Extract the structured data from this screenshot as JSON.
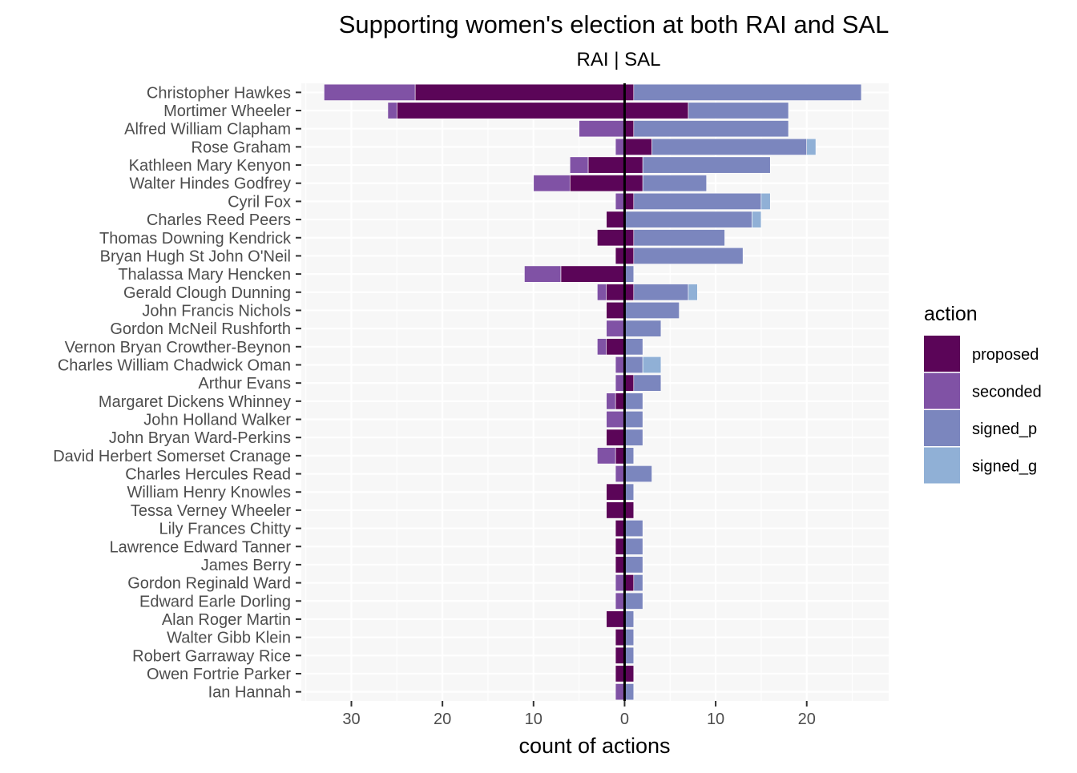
{
  "chart_data": {
    "type": "bar",
    "orientation": "horizontal",
    "stacked": true,
    "diverging": true,
    "title": "Supporting women's election at both RAI and SAL",
    "subtitle": "RAI | SAL",
    "xlabel": "count of actions",
    "ylabel": "",
    "xlim": [
      -35.5,
      29
    ],
    "x_ticks": [
      -30,
      -20,
      -10,
      0,
      10,
      20
    ],
    "x_tick_labels": [
      "30",
      "20",
      "10",
      "0",
      "10",
      "20"
    ],
    "grid": true,
    "legend": {
      "title": "action",
      "position": "right"
    },
    "series": [
      {
        "name": "proposed",
        "color": "#5b0558"
      },
      {
        "name": "seconded",
        "color": "#8052a5"
      },
      {
        "name": "signed_p",
        "color": "#7b86be"
      },
      {
        "name": "signed_g",
        "color": "#90b0d6"
      }
    ],
    "categories": [
      "Christopher Hawkes",
      "Mortimer Wheeler",
      "Alfred William Clapham",
      "Rose Graham",
      "Kathleen Mary Kenyon",
      "Walter Hindes Godfrey",
      "Cyril Fox",
      "Charles Reed Peers",
      "Thomas Downing Kendrick",
      "Bryan Hugh St John O'Neil",
      "Thalassa Mary Hencken",
      "Gerald Clough Dunning",
      "John Francis Nichols",
      "Gordon McNeil Rushforth",
      "Vernon Bryan Crowther-Beynon",
      "Charles William Chadwick Oman",
      "Arthur Evans",
      "Margaret Dickens Whinney",
      "John Holland Walker",
      "John Bryan Ward-Perkins",
      "David Herbert Somerset Cranage",
      "Charles Hercules Read",
      "William Henry Knowles",
      "Tessa Verney Wheeler",
      "Lily Frances Chitty",
      "Lawrence Edward Tanner",
      "James Berry",
      "Gordon Reginald Ward",
      "Edward Earle Dorling",
      "Alan Roger Martin",
      "Walter Gibb Klein",
      "Robert Garraway Rice",
      "Owen Fortrie Parker",
      "Ian Hannah"
    ],
    "rai": {
      "proposed": [
        23,
        25,
        0,
        0,
        4,
        6,
        0,
        2,
        3,
        1,
        7,
        2,
        2,
        0,
        2,
        0,
        0,
        1,
        0,
        2,
        1,
        0,
        2,
        2,
        1,
        1,
        1,
        0,
        0,
        2,
        1,
        1,
        1,
        0
      ],
      "seconded": [
        10,
        1,
        5,
        1,
        2,
        4,
        1,
        0,
        0,
        0,
        4,
        1,
        0,
        2,
        1,
        1,
        1,
        1,
        2,
        0,
        2,
        1,
        0,
        0,
        0,
        0,
        0,
        1,
        1,
        0,
        0,
        0,
        0,
        1
      ]
    },
    "sal": {
      "proposed": [
        1,
        7,
        1,
        3,
        2,
        2,
        1,
        0,
        1,
        1,
        0,
        1,
        0,
        0,
        0,
        0,
        1,
        0,
        0,
        0,
        0,
        0,
        0,
        1,
        0,
        0,
        0,
        1,
        0,
        0,
        0,
        0,
        1,
        0
      ],
      "signed_p": [
        25,
        11,
        17,
        17,
        14,
        7,
        14,
        14,
        10,
        12,
        1,
        6,
        6,
        4,
        2,
        2,
        3,
        2,
        2,
        2,
        1,
        3,
        1,
        0,
        2,
        2,
        2,
        1,
        2,
        1,
        1,
        1,
        0,
        1
      ],
      "signed_g": [
        0,
        0,
        0,
        1,
        0,
        0,
        1,
        1,
        0,
        0,
        0,
        1,
        0,
        0,
        0,
        2,
        0,
        0,
        0,
        0,
        0,
        0,
        0,
        0,
        0,
        0,
        0,
        0,
        0,
        0,
        0,
        0,
        0,
        0
      ]
    }
  }
}
